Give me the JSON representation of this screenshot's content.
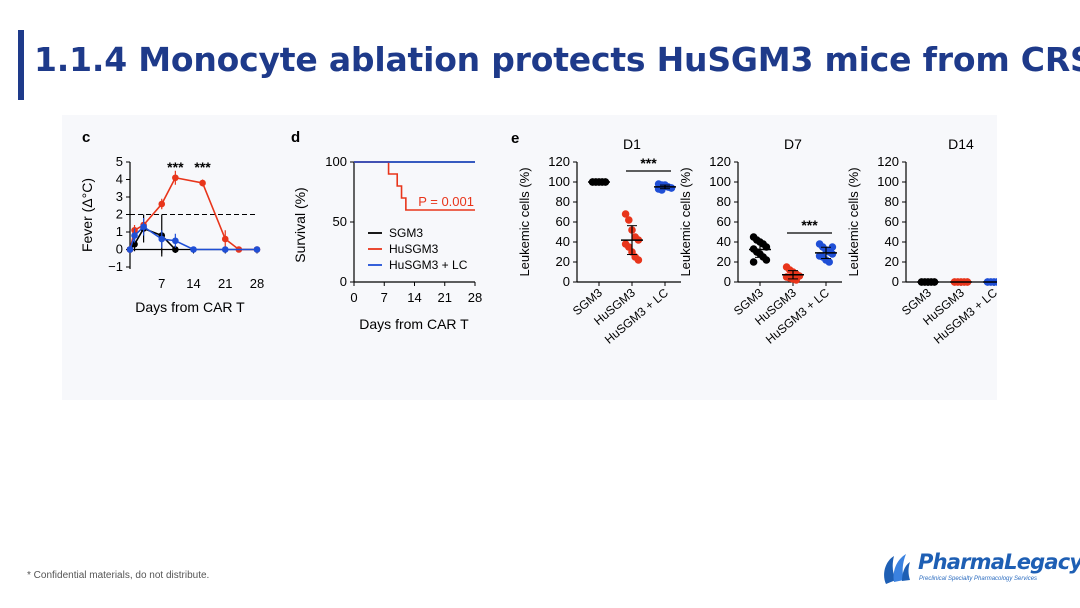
{
  "slide": {
    "title": "1.1.4 Monocyte ablation protects HuSGM3 mice from CRS.",
    "footer": "* Confidential materials, do not distribute.",
    "logo": {
      "name": "PharmaLegacy",
      "tagline": "Preclinical Specialty Pharmacology Services"
    }
  },
  "colors": {
    "title": "#1e3a8a",
    "SGM3": "#000000",
    "HuSGM3": "#e8351b",
    "HuSGM3_LC": "#1f4fd6",
    "logo": "#1e5fb4"
  },
  "chart_data": [
    {
      "panel": "c",
      "type": "line",
      "xlabel": "Days from CAR T",
      "ylabel": "Fever (Δ°C)",
      "xlim": [
        0,
        28
      ],
      "ylim": [
        -1,
        5
      ],
      "xticks": [
        7,
        14,
        21,
        28
      ],
      "yticks": [
        -1,
        0,
        1,
        2,
        3,
        4,
        5
      ],
      "threshold": 2,
      "annotations": [
        {
          "text": "***",
          "x": 10
        },
        {
          "text": "***",
          "x": 16
        }
      ],
      "series": [
        {
          "name": "SGM3",
          "points": [
            [
              0,
              0
            ],
            [
              1,
              0.3
            ],
            [
              3,
              1.2
            ],
            [
              7,
              0.8
            ],
            [
              10,
              0
            ]
          ],
          "err": [
            0.2,
            0.4,
            0.8,
            1.2,
            0.2
          ]
        },
        {
          "name": "HuSGM3",
          "points": [
            [
              0,
              0
            ],
            [
              1,
              1.1
            ],
            [
              3,
              1.4
            ],
            [
              7,
              2.6
            ],
            [
              10,
              4.1
            ],
            [
              16,
              3.8
            ],
            [
              21,
              0.6
            ],
            [
              24,
              0
            ],
            [
              28,
              0
            ]
          ],
          "err": [
            0.2,
            0.3,
            0.4,
            0.3,
            0.4,
            0.2,
            0.5,
            0.1,
            0.1
          ]
        },
        {
          "name": "HuSGM3 + LC",
          "points": [
            [
              0,
              0
            ],
            [
              1,
              0.8
            ],
            [
              3,
              1.3
            ],
            [
              7,
              0.6
            ],
            [
              10,
              0.5
            ],
            [
              14,
              0
            ],
            [
              21,
              0
            ],
            [
              28,
              0
            ]
          ],
          "err": [
            0.2,
            0.4,
            0.5,
            0.5,
            0.4,
            0.1,
            0.1,
            0.1
          ]
        }
      ]
    },
    {
      "panel": "d",
      "type": "line",
      "xlabel": "Days from CAR T",
      "ylabel": "Survival (%)",
      "xlim": [
        0,
        28
      ],
      "ylim": [
        0,
        100
      ],
      "xticks": [
        0,
        7,
        14,
        21,
        28
      ],
      "yticks": [
        0,
        50,
        100
      ],
      "pvalue": "P = 0.001",
      "legend": [
        "SGM3",
        "HuSGM3",
        "HuSGM3 + LC"
      ],
      "series": [
        {
          "name": "SGM3",
          "points": [
            [
              0,
              100
            ],
            [
              28,
              100
            ]
          ]
        },
        {
          "name": "HuSGM3",
          "points": [
            [
              0,
              100
            ],
            [
              8,
              100
            ],
            [
              8,
              90
            ],
            [
              10,
              90
            ],
            [
              10,
              80
            ],
            [
              11,
              80
            ],
            [
              11,
              70
            ],
            [
              12,
              70
            ],
            [
              12,
              60
            ],
            [
              28,
              60
            ]
          ]
        },
        {
          "name": "HuSGM3 + LC",
          "points": [
            [
              0,
              100
            ],
            [
              28,
              100
            ]
          ]
        }
      ]
    },
    {
      "panel": "e",
      "type": "scatter",
      "ylabel": "Leukemic cells (%)",
      "ylim": [
        0,
        120
      ],
      "yticks": [
        0,
        20,
        40,
        60,
        80,
        100,
        120
      ],
      "categories": [
        "SGM3",
        "HuSGM3",
        "HuSGM3 + LC"
      ],
      "subplots": [
        {
          "title": "D1",
          "sig": "***",
          "sig_between": [
            1,
            2
          ],
          "groups": [
            [
              100,
              100,
              100,
              100,
              100,
              100,
              100,
              100,
              100,
              100
            ],
            [
              68,
              62,
              52,
              45,
              42,
              38,
              35,
              30,
              25,
              22
            ],
            [
              98,
              97,
              96,
              95,
              94,
              93,
              92,
              97,
              95,
              94
            ]
          ]
        },
        {
          "title": "D7",
          "sig": "***",
          "sig_between": [
            1,
            2
          ],
          "groups": [
            [
              45,
              42,
              40,
              38,
              35,
              33,
              30,
              28,
              25,
              22,
              20
            ],
            [
              15,
              12,
              10,
              8,
              6,
              5,
              4,
              3,
              2
            ],
            [
              38,
              35,
              32,
              30,
              28,
              26,
              25,
              22,
              20,
              35
            ]
          ]
        },
        {
          "title": "D14",
          "groups": [
            [
              0,
              0,
              0,
              0,
              0,
              0,
              0,
              0,
              0,
              0
            ],
            [
              0,
              0,
              0,
              0,
              0,
              0,
              0,
              0,
              0,
              0
            ],
            [
              0,
              0,
              0,
              0,
              0,
              0,
              0,
              0,
              0,
              0
            ]
          ]
        }
      ]
    }
  ]
}
